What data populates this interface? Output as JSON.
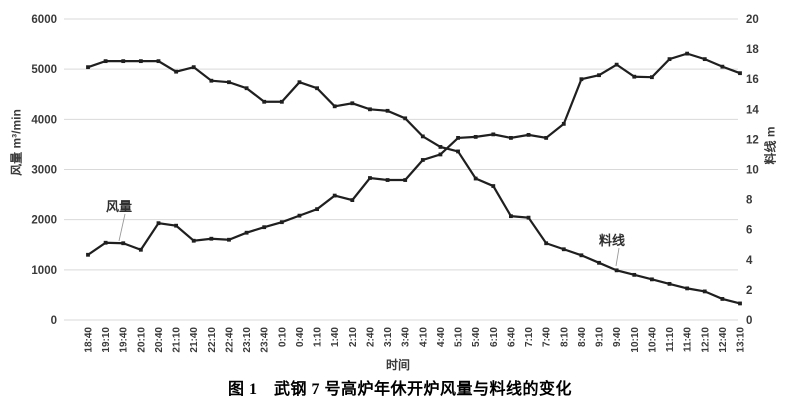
{
  "figure": {
    "caption": "图 1　武钢 7 号高炉年休开炉风量与料线的变化",
    "x_axis_label": "时间",
    "left_axis_label": "风量 m³/min",
    "right_axis_label": "料线 m",
    "series_label_air_volume": "风量",
    "series_label_stock_line": "料线"
  },
  "chart_data": {
    "type": "line",
    "x": [
      "18:40",
      "19:10",
      "19:40",
      "20:10",
      "20:40",
      "21:10",
      "21:40",
      "22:10",
      "22:40",
      "23:10",
      "23:40",
      "0:10",
      "0:40",
      "1:10",
      "1:40",
      "2:10",
      "2:40",
      "3:10",
      "3:40",
      "4:10",
      "4:40",
      "5:10",
      "5:40",
      "6:10",
      "6:40",
      "7:10",
      "7:40",
      "8:10",
      "8:40",
      "9:10",
      "9:40",
      "10:10",
      "10:40",
      "11:10",
      "11:40",
      "12:10",
      "12:40",
      "13:10"
    ],
    "series": [
      {
        "name": "风量",
        "axis": "left",
        "unit": "m³/min",
        "values": [
          1300,
          1540,
          1530,
          1400,
          1930,
          1880,
          1580,
          1620,
          1600,
          1740,
          1850,
          1950,
          2080,
          2210,
          2480,
          2390,
          2830,
          2790,
          2790,
          3190,
          3300,
          3630,
          3650,
          3700,
          3630,
          3690,
          3630,
          3910,
          4800,
          4880,
          5090,
          4850,
          4840,
          5200,
          5310,
          5200,
          5050,
          4920
        ]
      },
      {
        "name": "料线",
        "axis": "right",
        "unit": "m",
        "values": [
          16.8,
          17.2,
          17.2,
          17.2,
          17.2,
          16.5,
          16.8,
          15.9,
          15.8,
          15.4,
          14.5,
          14.5,
          15.8,
          15.4,
          14.2,
          14.4,
          14.0,
          13.9,
          13.4,
          12.2,
          11.5,
          11.2,
          9.4,
          8.9,
          6.9,
          6.8,
          5.1,
          4.7,
          4.3,
          3.8,
          3.3,
          3.0,
          2.7,
          2.4,
          2.1,
          1.9,
          1.4,
          1.1
        ]
      }
    ],
    "left_axis": {
      "label": "风量 m³/min",
      "min": 0,
      "max": 6000,
      "step": 1000,
      "ticks": [
        0,
        1000,
        2000,
        3000,
        4000,
        5000,
        6000
      ]
    },
    "right_axis": {
      "label": "料线 m",
      "min": 0,
      "max": 20,
      "step": 2,
      "ticks": [
        0,
        2,
        4,
        6,
        8,
        10,
        12,
        14,
        16,
        18,
        20
      ]
    },
    "xlabel": "时间",
    "title": "图 1　武钢 7 号高炉年休开炉风量与料线的变化",
    "grid": true,
    "legend_position": "inline-annotations",
    "line_color": "#1f1f1f",
    "grid_color": "#d9d9d9",
    "tick_label_color": "#3a3a3a"
  }
}
